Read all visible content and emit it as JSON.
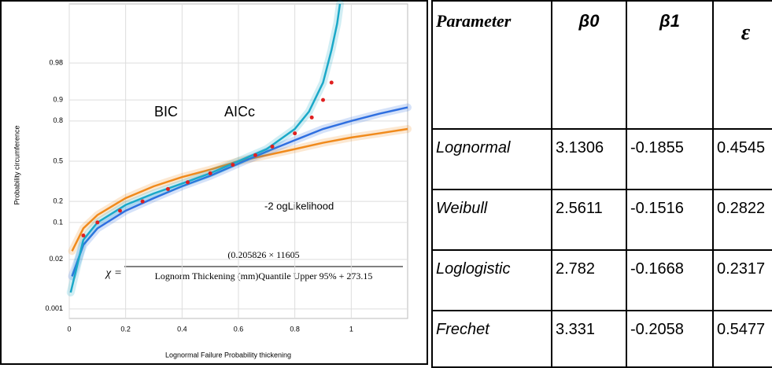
{
  "chart_data": {
    "type": "line",
    "xlabel": "Lognormal Failure Probability thickening",
    "ylabel": "Probability circumference",
    "xlim": [
      0,
      1.2
    ],
    "xticks": [
      0,
      0.2,
      0.4,
      0.6,
      0.8,
      1
    ],
    "ylim": [
      0.0005,
      0.9995
    ],
    "yticks": [
      0.001,
      0.02,
      0.1,
      0.2,
      0.5,
      0.8,
      0.9,
      0.98
    ],
    "yscale": "probit",
    "grid": true,
    "series": [
      {
        "color": "#f08a1c",
        "x": [
          0.01,
          0.05,
          0.1,
          0.2,
          0.3,
          0.4,
          0.5,
          0.6,
          0.7,
          0.8,
          0.9,
          1.0,
          1.1,
          1.2
        ],
        "values": [
          0.03,
          0.08,
          0.13,
          0.22,
          0.3,
          0.37,
          0.43,
          0.5,
          0.55,
          0.6,
          0.65,
          0.69,
          0.72,
          0.75
        ]
      },
      {
        "color": "#2f6fe0",
        "x": [
          0.01,
          0.05,
          0.1,
          0.2,
          0.3,
          0.4,
          0.5,
          0.6,
          0.7,
          0.8,
          0.9,
          1.0,
          1.1,
          1.2
        ],
        "values": [
          0.008,
          0.04,
          0.08,
          0.15,
          0.22,
          0.3,
          0.38,
          0.48,
          0.58,
          0.67,
          0.75,
          0.8,
          0.84,
          0.87
        ]
      },
      {
        "color": "#1aa8c8",
        "x": [
          0.005,
          0.05,
          0.1,
          0.2,
          0.3,
          0.4,
          0.5,
          0.6,
          0.7,
          0.8,
          0.85,
          0.9,
          0.93,
          0.95,
          0.96
        ],
        "values": [
          0.003,
          0.05,
          0.1,
          0.18,
          0.25,
          0.32,
          0.4,
          0.5,
          0.6,
          0.75,
          0.85,
          0.95,
          0.99,
          0.998,
          0.9995
        ]
      }
    ],
    "points": {
      "color": "#e02020",
      "x": [
        0.05,
        0.1,
        0.18,
        0.26,
        0.35,
        0.42,
        0.5,
        0.58,
        0.66,
        0.72,
        0.8,
        0.86,
        0.9,
        0.93
      ],
      "values": [
        0.06,
        0.1,
        0.15,
        0.2,
        0.28,
        0.33,
        0.4,
        0.47,
        0.55,
        0.62,
        0.72,
        0.82,
        0.9,
        0.95
      ]
    },
    "annotations": [
      "BIC",
      "AICc",
      "-2 ogLikelihood"
    ],
    "formula": {
      "lhs": "χ =",
      "numerator": "(0.205826 × 11605",
      "denominator": "Lognorm Thickening (mm)Quantile Upper 95% + 273.15"
    }
  },
  "table": {
    "header": [
      "Parameter",
      "β0",
      "β1",
      "ε"
    ],
    "rows": [
      [
        "Lognormal",
        "3.1306",
        "-0.1855",
        "0.4545"
      ],
      [
        "Weibull",
        "2.5611",
        "-0.1516",
        "0.2822"
      ],
      [
        "Loglogistic",
        "2.782",
        "-0.1668",
        "0.2317"
      ],
      [
        "Frechet",
        "3.331",
        "-0.2058",
        "0.5477"
      ]
    ]
  }
}
